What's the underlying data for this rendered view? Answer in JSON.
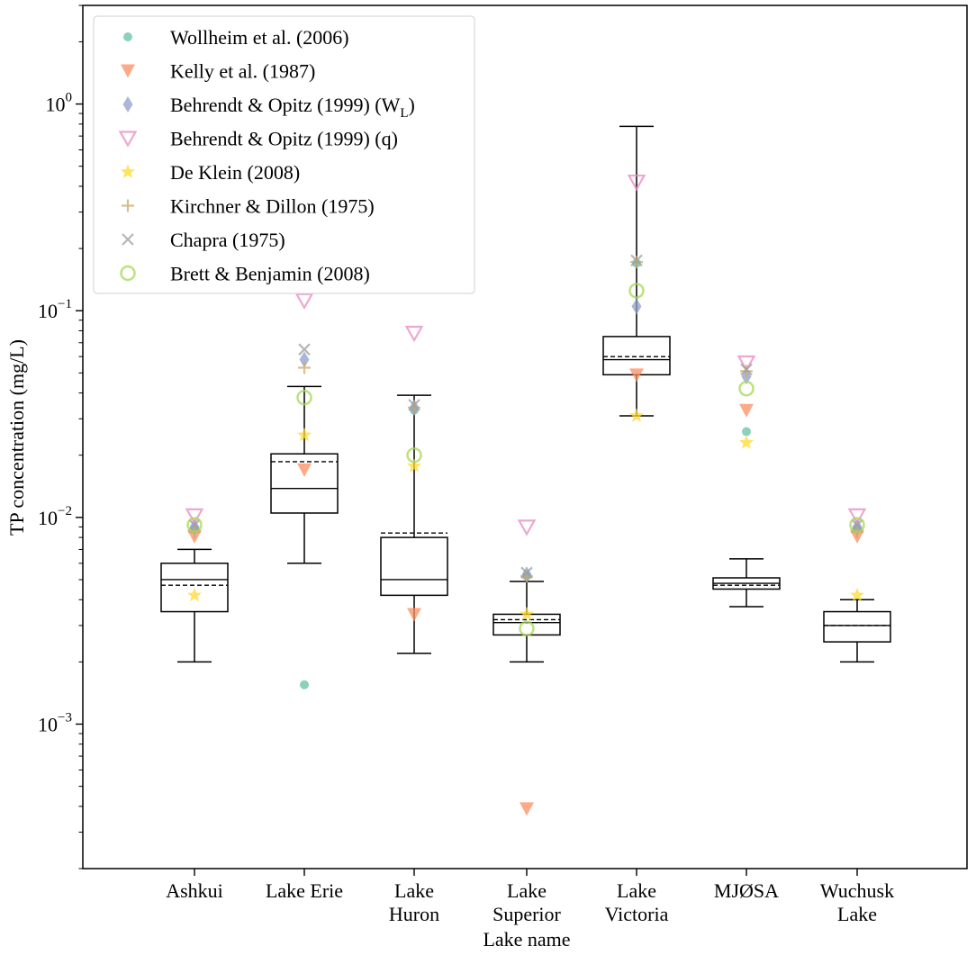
{
  "chart_data": {
    "type": "box",
    "title": "",
    "xlabel": "Lake name",
    "ylabel": "TP concentration (mg/L)",
    "yscale": "log",
    "ylim": [
      0.0002,
      3.0
    ],
    "yticks": [
      {
        "value": 0.001,
        "base": "10",
        "exp": "−3"
      },
      {
        "value": 0.01,
        "base": "10",
        "exp": "−2"
      },
      {
        "value": 0.1,
        "base": "10",
        "exp": "−1"
      },
      {
        "value": 1,
        "base": "10",
        "exp": "0"
      }
    ],
    "categories": [
      {
        "lines": [
          "Ashkui"
        ]
      },
      {
        "lines": [
          "Lake Erie"
        ]
      },
      {
        "lines": [
          "Lake",
          "Huron"
        ]
      },
      {
        "lines": [
          "Lake",
          "Superior"
        ]
      },
      {
        "lines": [
          "Lake",
          "Victoria"
        ]
      },
      {
        "lines": [
          "MJØSA"
        ]
      },
      {
        "lines": [
          "Wuchusk",
          "Lake"
        ]
      }
    ],
    "boxes": [
      {
        "whislo": 0.002,
        "q1": 0.0035,
        "med": 0.005,
        "q3": 0.006,
        "whishi": 0.007,
        "mean": 0.0047
      },
      {
        "whislo": 0.006,
        "q1": 0.0105,
        "med": 0.0138,
        "q3": 0.0203,
        "whishi": 0.043,
        "mean": 0.0186
      },
      {
        "whislo": 0.0022,
        "q1": 0.0042,
        "med": 0.005,
        "q3": 0.008,
        "whishi": 0.039,
        "mean": 0.0084
      },
      {
        "whislo": 0.002,
        "q1": 0.0027,
        "med": 0.0031,
        "q3": 0.0034,
        "whishi": 0.0049,
        "mean": 0.0032
      },
      {
        "whislo": 0.031,
        "q1": 0.049,
        "med": 0.058,
        "q3": 0.075,
        "whishi": 0.78,
        "mean": 0.06
      },
      {
        "whislo": 0.0037,
        "q1": 0.0045,
        "med": 0.0048,
        "q3": 0.0051,
        "whishi": 0.0063,
        "mean": 0.0047
      },
      {
        "whislo": 0.002,
        "q1": 0.0025,
        "med": 0.003,
        "q3": 0.0035,
        "whishi": 0.004,
        "mean": 0.003
      }
    ],
    "series": [
      {
        "name": "Wollheim et al. (2006)",
        "marker": "circle",
        "color": "#66c2a5",
        "values": [
          0.0088,
          0.00155,
          0.033,
          0.0052,
          0.17,
          0.026,
          0.0088
        ]
      },
      {
        "name": "Kelly et al. (1987)",
        "marker": "triangle-down",
        "color": "#fc8d62",
        "values": [
          0.0081,
          0.017,
          0.0034,
          0.00039,
          0.049,
          0.033,
          0.0081
        ]
      },
      {
        "name": "Behrendt & Opitz (1999) (W",
        "sub": "L",
        "suffix": ")",
        "marker": "diamond",
        "color": "#8da0cb",
        "values": [
          0.009,
          0.058,
          0.034,
          0.0053,
          0.105,
          0.048,
          0.009
        ]
      },
      {
        "name": "Behrendt & Opitz (1999) (q)",
        "marker": "triangle-down-open",
        "color": "#e78ac3",
        "values": [
          0.0102,
          0.112,
          0.078,
          0.009,
          0.42,
          0.056,
          0.0102
        ]
      },
      {
        "name": "De Klein (2008)",
        "marker": "star",
        "color": "#ffd92f",
        "values": [
          0.0042,
          0.025,
          0.0177,
          0.0034,
          0.031,
          0.023,
          0.0042
        ]
      },
      {
        "name": "Kirchner & Dillon (1975)",
        "marker": "plus",
        "color": "#c9a96e",
        "values": [
          0.0085,
          0.053,
          0.034,
          0.0052,
          0.172,
          0.051,
          0.0085
        ]
      },
      {
        "name": "Chapra (1975)",
        "marker": "x",
        "color": "#9e9e9e",
        "values": [
          0.0092,
          0.065,
          0.035,
          0.0054,
          0.175,
          0.052,
          0.0092
        ]
      },
      {
        "name": "Brett & Benjamin (2008)",
        "marker": "circle-open",
        "color": "#a6d854",
        "values": [
          0.0092,
          0.038,
          0.02,
          0.0029,
          0.125,
          0.042,
          0.0092
        ]
      }
    ]
  }
}
